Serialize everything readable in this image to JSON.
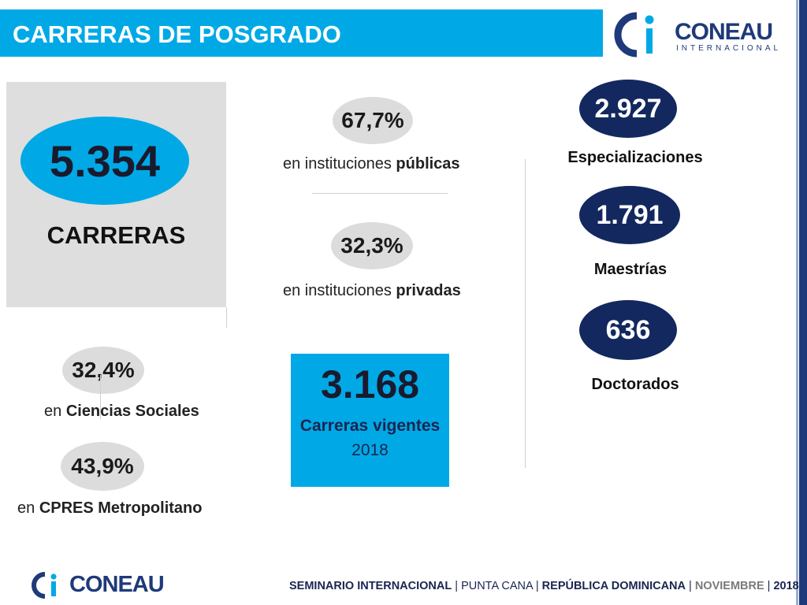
{
  "header": {
    "title": "CARRERAS DE POSGRADO"
  },
  "logo_top": {
    "brand": "CONEAU",
    "sub": "INTERNACIONAL"
  },
  "total": {
    "value": "5.354",
    "label": "CARRERAS"
  },
  "publicas": {
    "pct": "67,7%",
    "prefix": "en instituciones ",
    "bold": "públicas"
  },
  "privadas": {
    "pct": "32,3%",
    "prefix": "en instituciones ",
    "bold": "privadas"
  },
  "sociales": {
    "pct": "32,4%",
    "prefix": "en ",
    "bold": "Ciencias Sociales"
  },
  "cpres": {
    "pct": "43,9%",
    "prefix": "en ",
    "bold": "CPRES Metropolitano"
  },
  "vigentes": {
    "value": "3.168",
    "label": "Carreras vigentes",
    "year": "2018"
  },
  "niveles": [
    {
      "value": "2.927",
      "label": "Especializaciones"
    },
    {
      "value": "1.791",
      "label": "Maestrías"
    },
    {
      "value": "636",
      "label": "Doctorados"
    }
  ],
  "logo_bottom": {
    "brand": "CONEAU"
  },
  "footer": {
    "seminario": "SEMINARIO INTERNACIONAL",
    "sep": " | ",
    "lugar": "PUNTA CANA",
    "pais": "REPÚBLICA DOMINICANA",
    "mes": "NOVIEMBRE",
    "anio": "2018"
  },
  "colors": {
    "accent": "#00a9e6",
    "navy": "#13285f",
    "grey": "#dcdcdc"
  }
}
